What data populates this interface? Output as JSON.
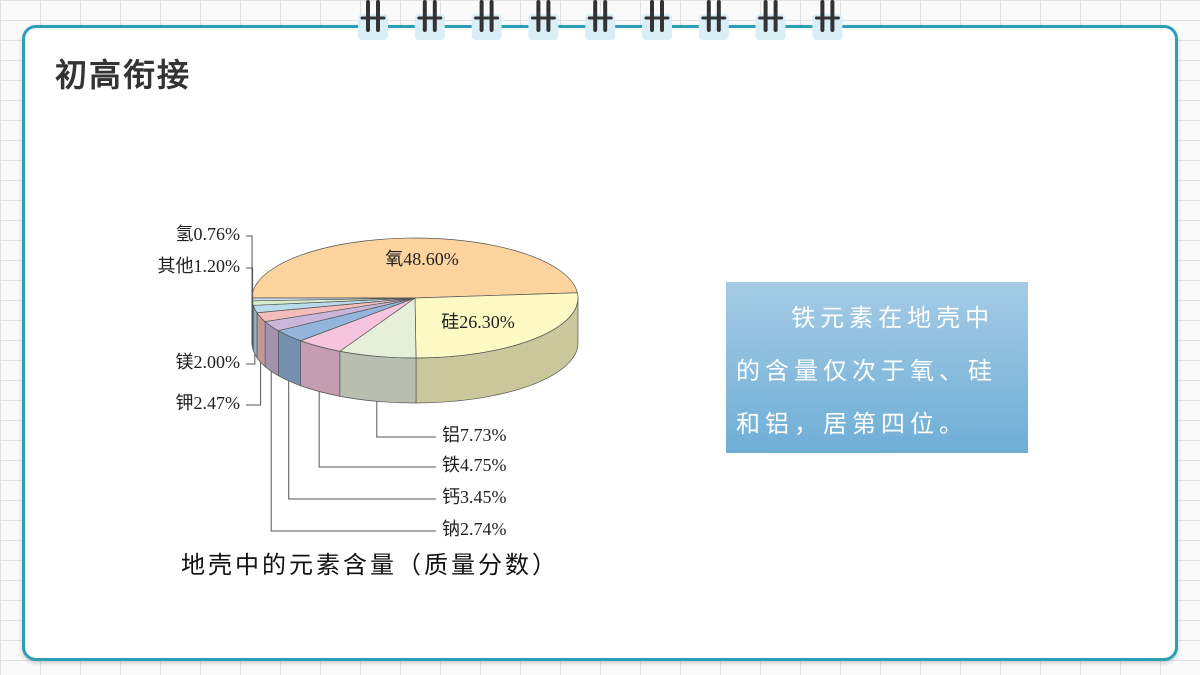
{
  "header": {
    "title": "初高衔接"
  },
  "chart_data": {
    "type": "pie3d",
    "title": "地壳中的元素含量（质量分数）",
    "categories": [
      "氧",
      "硅",
      "铝",
      "铁",
      "钙",
      "钠",
      "钾",
      "镁",
      "其他",
      "氢"
    ],
    "values": [
      48.6,
      26.3,
      7.73,
      4.75,
      3.45,
      2.74,
      2.47,
      2.0,
      1.2,
      0.76
    ],
    "value_labels": [
      "48.60%",
      "26.30%",
      "7.73%",
      "4.75%",
      "3.45%",
      "2.74%",
      "2.47%",
      "2.00%",
      "1.20%",
      "0.76%"
    ],
    "colors": [
      "#fdd49e",
      "#fdf9c4",
      "#e6efd9",
      "#f6c4dd",
      "#93b5db",
      "#cab6da",
      "#f5bcbc",
      "#b9dbeb",
      "#d9ebc9",
      "#c9e2f2"
    ]
  },
  "note": {
    "text": "铁元素在地壳中的含量仅次于氧、硅和铝，居第四位。"
  }
}
